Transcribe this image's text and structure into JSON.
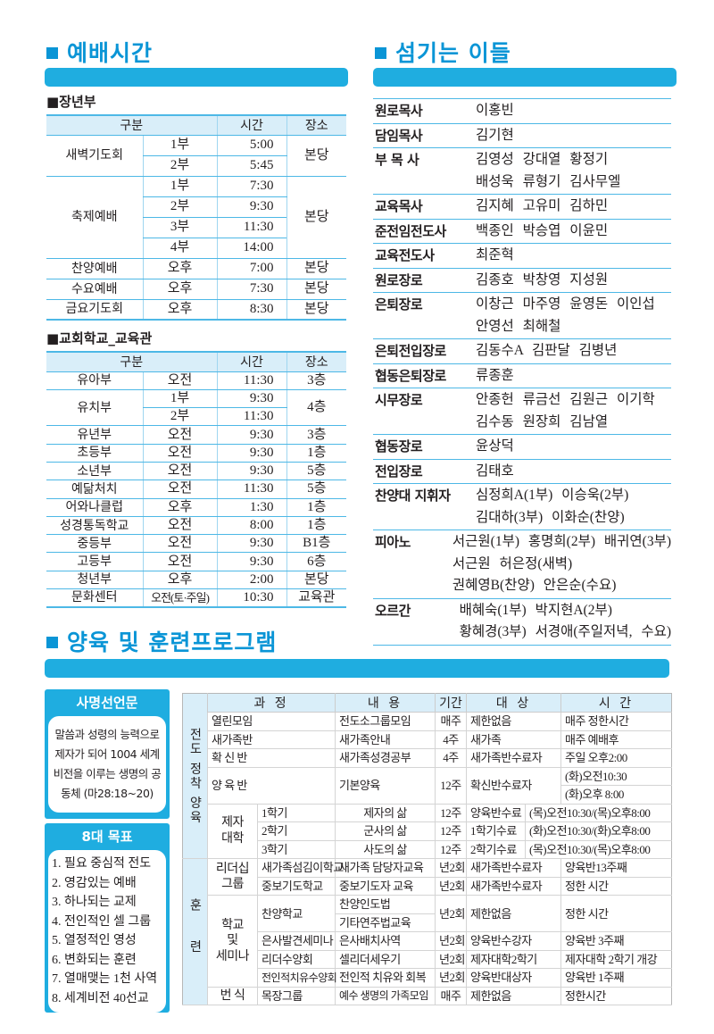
{
  "sections": {
    "worship_title": "예배시간",
    "servants_title": "섬기는 이들",
    "training_title": "양육 및 훈련프로그램"
  },
  "colors": {
    "accent": "#1fade0",
    "title": "#0a95d6",
    "header_bg": "#d9eef9"
  },
  "adult": {
    "title": "■장년부",
    "headers": {
      "category": "구분",
      "time": "시간",
      "place": "장소"
    },
    "rows": [
      {
        "name": "새벽기도회",
        "place": "본당",
        "sub": [
          {
            "part": "1부",
            "time": "5:00"
          },
          {
            "part": "2부",
            "time": "5:45"
          }
        ]
      },
      {
        "name": "축제예배",
        "place": "본당",
        "sub": [
          {
            "part": "1부",
            "time": "7:30"
          },
          {
            "part": "2부",
            "time": "9:30"
          },
          {
            "part": "3부",
            "time": "11:30"
          },
          {
            "part": "4부",
            "time": "14:00"
          }
        ]
      },
      {
        "name": "찬양예배",
        "place": "본당",
        "sub": [
          {
            "part": "오후",
            "time": "7:00"
          }
        ]
      },
      {
        "name": "수요예배",
        "place": "본당",
        "sub": [
          {
            "part": "오후",
            "time": "7:30"
          }
        ]
      },
      {
        "name": "금요기도회",
        "place": "본당",
        "sub": [
          {
            "part": "오후",
            "time": "8:30"
          }
        ]
      }
    ]
  },
  "school": {
    "title": "■교회학교_교육관",
    "headers": {
      "category": "구분",
      "time": "시간",
      "place": "장소"
    },
    "rows": [
      {
        "name": "유아부",
        "place": "3층",
        "sub": [
          {
            "part": "오전",
            "time": "11:30"
          }
        ]
      },
      {
        "name": "유치부",
        "place": "4층",
        "sub": [
          {
            "part": "1부",
            "time": "9:30"
          },
          {
            "part": "2부",
            "time": "11:30"
          }
        ]
      },
      {
        "name": "유년부",
        "place": "3층",
        "sub": [
          {
            "part": "오전",
            "time": "9:30"
          }
        ]
      },
      {
        "name": "초등부",
        "place": "1층",
        "sub": [
          {
            "part": "오전",
            "time": "9:30"
          }
        ]
      },
      {
        "name": "소년부",
        "place": "5층",
        "sub": [
          {
            "part": "오전",
            "time": "9:30"
          }
        ]
      },
      {
        "name": "예닮처치",
        "place": "5층",
        "sub": [
          {
            "part": "오전",
            "time": "11:30"
          }
        ]
      },
      {
        "name": "어와나클럽",
        "place": "1층",
        "sub": [
          {
            "part": "오후",
            "time": "1:30"
          }
        ]
      },
      {
        "name": "성경통독학교",
        "place": "1층",
        "sub": [
          {
            "part": "오전",
            "time": "8:00"
          }
        ]
      },
      {
        "name": "중등부",
        "place": "B1층",
        "sub": [
          {
            "part": "오전",
            "time": "9:30"
          }
        ]
      },
      {
        "name": "고등부",
        "place": "6층",
        "sub": [
          {
            "part": "오전",
            "time": "9:30"
          }
        ]
      },
      {
        "name": "청년부",
        "place": "본당",
        "sub": [
          {
            "part": "오후",
            "time": "2:00"
          }
        ]
      },
      {
        "name": "문화센터",
        "place": "교육관",
        "sub": [
          {
            "part": "오전(토·주일)",
            "time": "10:30"
          }
        ]
      }
    ]
  },
  "servants": [
    {
      "role": "원로목사",
      "lines": [
        "이홍빈"
      ]
    },
    {
      "role": "담임목사",
      "lines": [
        "김기현"
      ]
    },
    {
      "role": "부 목 사",
      "lines": [
        "김영성 강대열 황정기",
        "배성욱 류형기 김사무엘"
      ]
    },
    {
      "role": "교육목사",
      "lines": [
        "김지혜 고유미 김하민"
      ]
    },
    {
      "role": "준전임전도사",
      "lines": [
        "백종인 박승엽 이윤민"
      ]
    },
    {
      "role": "교육전도사",
      "lines": [
        "최준혁"
      ]
    },
    {
      "role": "원로장로",
      "lines": [
        "김종호 박창영 지성원"
      ]
    },
    {
      "role": "은퇴장로",
      "lines": [
        "이창근 마주영 윤영돈 이인섭",
        "안영선 최해철"
      ]
    },
    {
      "role": "은퇴전입장로",
      "lines": [
        "김동수A 김판달 김병년"
      ]
    },
    {
      "role": "협동은퇴장로",
      "lines": [
        "류종훈"
      ]
    },
    {
      "role": "시무장로",
      "lines": [
        "안종헌 류금선 김원근 이기학",
        "김수동 원장희 김남열"
      ]
    },
    {
      "role": "협동장로",
      "lines": [
        "윤상덕"
      ]
    },
    {
      "role": "전입장로",
      "lines": [
        "김태호"
      ]
    },
    {
      "role": "찬양대 지휘자",
      "lines": [
        "심정희A(1부) 이승욱(2부)",
        "김대하(3부) 이화순(찬양)"
      ]
    },
    {
      "role": "피아노",
      "lines": [
        "서근원(1부) 홍명희(2부) 배귀연(3부)",
        "서근원 허은정(새벽)",
        "권혜영B(찬양) 안은순(수요)"
      ]
    },
    {
      "role": "오르간",
      "lines": [
        "배혜숙(1부) 박지현A(2부)",
        "황혜경(3부) 서경애(주일저녁, 수요)"
      ]
    }
  ],
  "mission": {
    "title": "사명선언문",
    "text": "말씀과 성령의 능력으로 제자가 되어 1004 세계 비전을 이루는 생명의 공동체 (마28:18~20)"
  },
  "goals": {
    "title": "8대 목표",
    "items": [
      "1. 필요 중심적 전도",
      "2. 영감있는 예배",
      "3. 하나되는 교제",
      "4. 전인적인 셀 그룹",
      "5. 열정적인 영성",
      "6. 변화되는 훈련",
      "7. 열매맺는 1천 사역",
      "8. 세계비전 40선교"
    ]
  },
  "training": {
    "headers": {
      "course": "과 정",
      "content": "내 용",
      "period": "기간",
      "target": "대 상",
      "time": "시 간"
    },
    "side_1": "전도 정착 양육",
    "side_2": "훈 련",
    "groups": {
      "disciple": "제자\n대학",
      "leadership": "리더십\n그룹",
      "school": "학교\n및\n세미나",
      "multiply": "번 식"
    },
    "rows": [
      {
        "course": "열린모임",
        "content": "전도소그룹모임",
        "period": "매주",
        "target": "제한없음",
        "time": "매주 정한시간"
      },
      {
        "course": "새가족반",
        "content": "새가족안내",
        "period": "4주",
        "target": "새가족",
        "time": "매주 예배후"
      },
      {
        "course": "확 신 반",
        "content": "새가족성경공부",
        "period": "4주",
        "target": "새가족반수료자",
        "time": "주일 오후2:00"
      },
      {
        "course": "양 육 반",
        "content": "기본양육",
        "period": "12주",
        "target": "확신반수료자",
        "time": "(화)오전10:30",
        "time2": "(화)오후 8:00"
      },
      {
        "course": "1학기",
        "content": "제자의 삶",
        "period": "12주",
        "target": "양육반수료",
        "time": "(목)오전10:30/(목)오후8:00"
      },
      {
        "course": "2학기",
        "content": "군사의 삶",
        "period": "12주",
        "target": "1학기수료",
        "time": "(화)오전10:30/(화)오후8:00"
      },
      {
        "course": "3학기",
        "content": "사도의 삶",
        "period": "12주",
        "target": "2학기수료",
        "time": "(목)오전10:30/(목)오후8:00"
      },
      {
        "course": "새가족섬김이학교",
        "content": "새가족 담당자교육",
        "period": "년2회",
        "target": "새가족반수료자",
        "time": "양육반13주째"
      },
      {
        "course": "중보기도학교",
        "content": "중보기도자 교육",
        "period": "년2회",
        "target": "새가족반수료자",
        "time": "정한 시간"
      },
      {
        "course": "찬양학교",
        "content": "찬양인도법",
        "content2": "기타연주법교육",
        "period": "년2회",
        "target": "제한없음",
        "time": "정한 시간"
      },
      {
        "course": "은사발견세미나",
        "content": "은사배치사역",
        "period": "년2회",
        "target": "양육반수강자",
        "time": "양육반 3주째"
      },
      {
        "course": "리더수양회",
        "content": "셀리더세우기",
        "period": "년2회",
        "target": "제자대학2학기",
        "time": "제자대학 2학기 개강"
      },
      {
        "course": "전인적치유수양회",
        "content": "전인적 치유와 회복",
        "period": "년2회",
        "target": "양육반대상자",
        "time": "양육반 1주째"
      },
      {
        "course": "목장그룹",
        "content": "예수 생명의 가족모임",
        "period": "매주",
        "target": "제한없음",
        "time": "정한시간"
      }
    ]
  }
}
